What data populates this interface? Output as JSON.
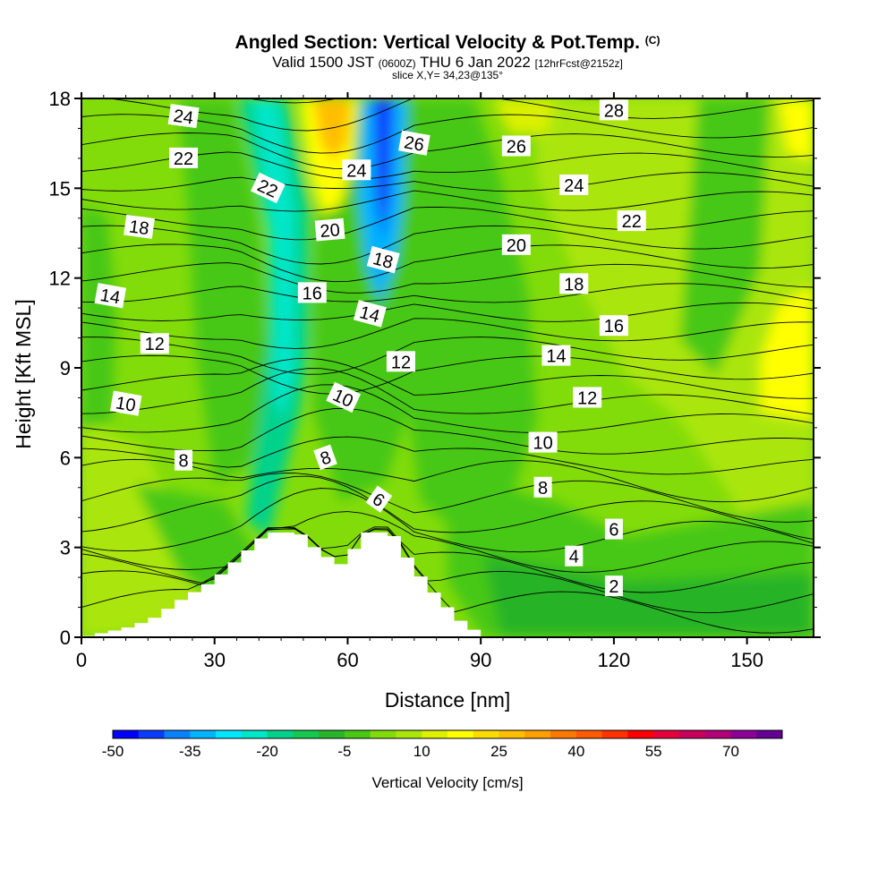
{
  "header": {
    "title": "Angled Section: Vertical Velocity & Pot.Temp.",
    "copyright": "(C)",
    "valid_prefix": "Valid 1500 JST",
    "valid_utc": "(0600Z)",
    "valid_date": "THU 6 Jan 2022",
    "forecast": "[12hrFcst@2152z]",
    "slice": "slice X,Y= 34,23@135°"
  },
  "colors": {
    "terrain": "#ffffff",
    "contour": "#000000",
    "scale": [
      "#0000ff",
      "#0c3cff",
      "#0a82ff",
      "#00b4ff",
      "#00e6ff",
      "#00e6c8",
      "#00d28c",
      "#14c850",
      "#28b428",
      "#46c814",
      "#82dc0a",
      "#aae60a",
      "#dcf000",
      "#ffff00",
      "#ffdc00",
      "#ffbe00",
      "#ffa000",
      "#ff7800",
      "#ff5a00",
      "#ff3200",
      "#ff0000",
      "#e6003c",
      "#c8005a",
      "#b40078",
      "#8c0096",
      "#640096"
    ]
  },
  "chart_data": {
    "type": "heatmap",
    "xlabel": "Distance [nm]",
    "ylabel": "Height [Kft MSL]",
    "xlim": [
      0,
      165
    ],
    "ylim": [
      0,
      18
    ],
    "x_ticks": [
      "0",
      "30",
      "60",
      "90",
      "120",
      "150"
    ],
    "y_ticks": [
      "0",
      "3",
      "6",
      "9",
      "12",
      "15",
      "18"
    ],
    "colorbar": {
      "label": "Vertical Velocity [cm/s]",
      "range": [
        -50,
        80
      ],
      "step": 5,
      "tick_labels": [
        "-50",
        "-35",
        "-20",
        "-5",
        "10",
        "25",
        "40",
        "55",
        "70"
      ]
    },
    "vertical_velocity_features": [
      {
        "x_range": [
          37,
          50
        ],
        "y_range": [
          7.5,
          18
        ],
        "value": -20
      },
      {
        "x_range": [
          63,
          70
        ],
        "y_range": [
          10,
          18
        ],
        "value": -45
      },
      {
        "x_range": [
          52,
          63
        ],
        "y_range": [
          13,
          18
        ],
        "value": 25
      },
      {
        "x_range": [
          156,
          165
        ],
        "y_range": [
          7.5,
          11
        ],
        "value": 15
      },
      {
        "x_range": [
          156,
          165
        ],
        "y_range": [
          15.5,
          18
        ],
        "value": 15
      }
    ],
    "terrain_profile": [
      {
        "x": 0,
        "y": 0
      },
      {
        "x": 10,
        "y": 0.3
      },
      {
        "x": 16,
        "y": 0.6
      },
      {
        "x": 22,
        "y": 1.2
      },
      {
        "x": 30,
        "y": 1.9
      },
      {
        "x": 36,
        "y": 2.7
      },
      {
        "x": 42,
        "y": 3.5
      },
      {
        "x": 49,
        "y": 3.5
      },
      {
        "x": 54,
        "y": 2.8
      },
      {
        "x": 59,
        "y": 2.4
      },
      {
        "x": 64,
        "y": 3.5
      },
      {
        "x": 70,
        "y": 3.5
      },
      {
        "x": 75,
        "y": 2.3
      },
      {
        "x": 80,
        "y": 1.4
      },
      {
        "x": 85,
        "y": 0.6
      },
      {
        "x": 91,
        "y": 0
      }
    ],
    "potential_temperature_labels": [
      {
        "text": "24",
        "x": 23,
        "y": 17.4,
        "rot": 8
      },
      {
        "text": "22",
        "x": 23,
        "y": 16.0,
        "rot": 0
      },
      {
        "text": "22",
        "x": 42,
        "y": 15.0,
        "rot": 25
      },
      {
        "text": "18",
        "x": 13,
        "y": 13.7,
        "rot": 8
      },
      {
        "text": "14",
        "x": 6.5,
        "y": 11.4,
        "rot": 10
      },
      {
        "text": "12",
        "x": 16.5,
        "y": 9.8,
        "rot": 0
      },
      {
        "text": "10",
        "x": 10,
        "y": 7.8,
        "rot": 10
      },
      {
        "text": "8",
        "x": 23,
        "y": 5.9,
        "rot": 0
      },
      {
        "text": "24",
        "x": 62,
        "y": 15.6,
        "rot": 0
      },
      {
        "text": "26",
        "x": 75,
        "y": 16.5,
        "rot": 10
      },
      {
        "text": "20",
        "x": 56,
        "y": 13.6,
        "rot": -5
      },
      {
        "text": "18",
        "x": 68,
        "y": 12.6,
        "rot": 15
      },
      {
        "text": "16",
        "x": 52,
        "y": 11.5,
        "rot": 0
      },
      {
        "text": "14",
        "x": 65,
        "y": 10.8,
        "rot": 15
      },
      {
        "text": "12",
        "x": 72,
        "y": 9.2,
        "rot": 0
      },
      {
        "text": "10",
        "x": 59,
        "y": 8.0,
        "rot": 25
      },
      {
        "text": "8",
        "x": 55,
        "y": 6.0,
        "rot": -20
      },
      {
        "text": "6",
        "x": 67,
        "y": 4.6,
        "rot": 35
      },
      {
        "text": "26",
        "x": 98,
        "y": 16.4,
        "rot": 0
      },
      {
        "text": "28",
        "x": 120,
        "y": 17.6,
        "rot": 0
      },
      {
        "text": "24",
        "x": 111,
        "y": 15.1,
        "rot": 0
      },
      {
        "text": "22",
        "x": 124,
        "y": 13.9,
        "rot": 0
      },
      {
        "text": "20",
        "x": 98,
        "y": 13.1,
        "rot": 0
      },
      {
        "text": "18",
        "x": 111,
        "y": 11.8,
        "rot": 0
      },
      {
        "text": "16",
        "x": 120,
        "y": 10.4,
        "rot": 0
      },
      {
        "text": "14",
        "x": 107,
        "y": 9.4,
        "rot": 0
      },
      {
        "text": "12",
        "x": 114,
        "y": 8.0,
        "rot": 0
      },
      {
        "text": "10",
        "x": 104,
        "y": 6.5,
        "rot": 0
      },
      {
        "text": "8",
        "x": 104,
        "y": 5.0,
        "rot": 0
      },
      {
        "text": "6",
        "x": 120,
        "y": 3.6,
        "rot": 0
      },
      {
        "text": "4",
        "x": 111,
        "y": 2.7,
        "rot": 0
      },
      {
        "text": "2",
        "x": 120,
        "y": 1.7,
        "rot": 0
      }
    ]
  }
}
